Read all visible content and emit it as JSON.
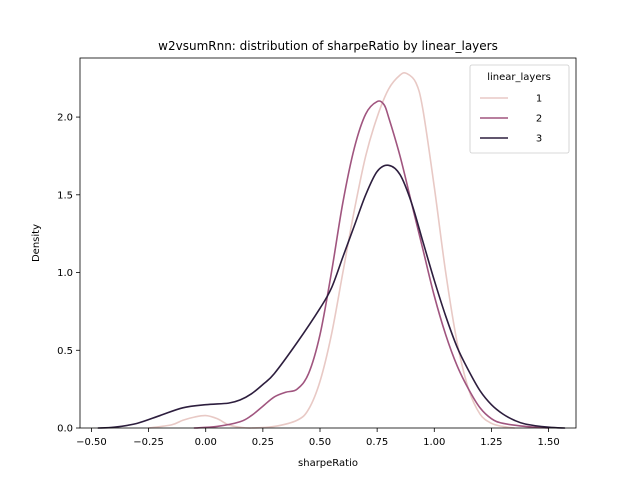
{
  "chart_data": {
    "type": "line",
    "title": "w2vsumRnn: distribution of sharpeRatio by linear_layers",
    "xlabel": "sharpeRatio",
    "ylabel": "Density",
    "xlim": [
      -0.55,
      1.62
    ],
    "ylim": [
      0,
      2.38
    ],
    "xticks": [
      {
        "value": -0.5,
        "label": "−0.50"
      },
      {
        "value": -0.25,
        "label": "−0.25"
      },
      {
        "value": 0.0,
        "label": "0.00"
      },
      {
        "value": 0.25,
        "label": "0.25"
      },
      {
        "value": 0.5,
        "label": "0.50"
      },
      {
        "value": 0.75,
        "label": "0.75"
      },
      {
        "value": 1.0,
        "label": "1.00"
      },
      {
        "value": 1.25,
        "label": "1.25"
      },
      {
        "value": 1.5,
        "label": "1.50"
      }
    ],
    "yticks": [
      {
        "value": 0.0,
        "label": "0.0"
      },
      {
        "value": 0.5,
        "label": "0.5"
      },
      {
        "value": 1.0,
        "label": "1.0"
      },
      {
        "value": 1.5,
        "label": "1.5"
      },
      {
        "value": 2.0,
        "label": "2.0"
      }
    ],
    "grid": false,
    "legend": {
      "title": "linear_layers",
      "placement": "top-right"
    },
    "series": [
      {
        "name": "1",
        "color": "#e8c9c5",
        "x": [
          -0.25,
          -0.15,
          -0.1,
          -0.05,
          0.0,
          0.05,
          0.1,
          0.15,
          0.2,
          0.3,
          0.4,
          0.45,
          0.5,
          0.55,
          0.6,
          0.65,
          0.7,
          0.75,
          0.8,
          0.85,
          0.88,
          0.92,
          0.95,
          1.0,
          1.05,
          1.1,
          1.15,
          1.2,
          1.25,
          1.3,
          1.35
        ],
        "y": [
          0.0,
          0.02,
          0.05,
          0.07,
          0.08,
          0.06,
          0.02,
          0.005,
          0.0,
          0.01,
          0.05,
          0.12,
          0.3,
          0.6,
          1.0,
          1.4,
          1.75,
          2.0,
          2.18,
          2.27,
          2.28,
          2.22,
          2.05,
          1.55,
          1.0,
          0.55,
          0.25,
          0.09,
          0.03,
          0.01,
          0.0
        ]
      },
      {
        "name": "2",
        "color": "#a0557f",
        "x": [
          -0.05,
          0.05,
          0.15,
          0.2,
          0.25,
          0.3,
          0.35,
          0.4,
          0.45,
          0.5,
          0.55,
          0.6,
          0.65,
          0.7,
          0.75,
          0.78,
          0.8,
          0.85,
          0.9,
          0.95,
          1.0,
          1.05,
          1.1,
          1.15,
          1.2,
          1.25,
          1.3,
          1.4,
          1.5
        ],
        "y": [
          0.0,
          0.01,
          0.04,
          0.08,
          0.14,
          0.2,
          0.23,
          0.25,
          0.35,
          0.6,
          1.0,
          1.45,
          1.8,
          2.02,
          2.1,
          2.08,
          2.0,
          1.75,
          1.45,
          1.15,
          0.85,
          0.6,
          0.4,
          0.25,
          0.13,
          0.06,
          0.03,
          0.01,
          0.0
        ]
      },
      {
        "name": "3",
        "color": "#2d1e3e",
        "x": [
          -0.47,
          -0.4,
          -0.3,
          -0.2,
          -0.1,
          0.0,
          0.1,
          0.15,
          0.2,
          0.25,
          0.3,
          0.4,
          0.5,
          0.55,
          0.6,
          0.65,
          0.7,
          0.75,
          0.8,
          0.85,
          0.9,
          0.95,
          1.0,
          1.05,
          1.1,
          1.15,
          1.2,
          1.25,
          1.3,
          1.35,
          1.4,
          1.5,
          1.57
        ],
        "y": [
          0.0,
          0.005,
          0.03,
          0.08,
          0.13,
          0.15,
          0.16,
          0.18,
          0.22,
          0.28,
          0.35,
          0.55,
          0.77,
          0.9,
          1.1,
          1.3,
          1.5,
          1.65,
          1.69,
          1.63,
          1.45,
          1.2,
          0.95,
          0.72,
          0.52,
          0.37,
          0.24,
          0.15,
          0.09,
          0.05,
          0.025,
          0.005,
          0.0
        ]
      }
    ]
  }
}
